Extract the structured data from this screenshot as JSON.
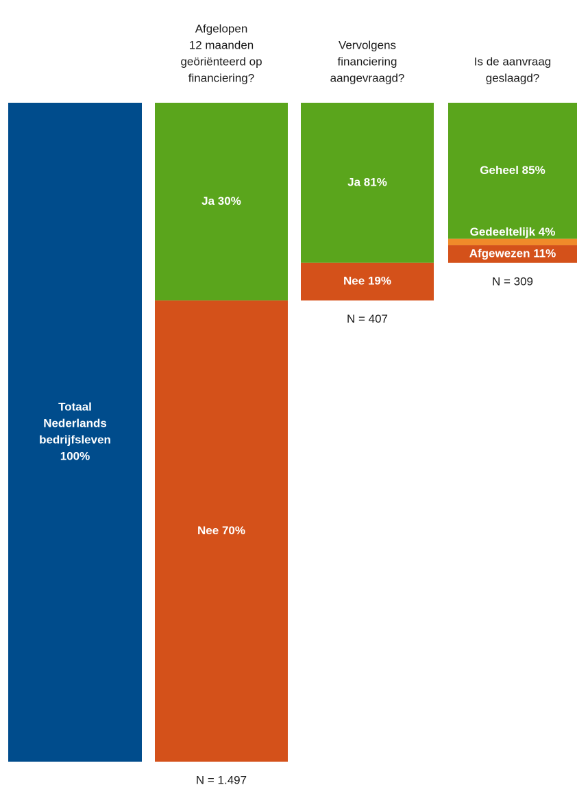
{
  "chart_data": {
    "type": "cascade",
    "columns": [
      {
        "values": [
          100
        ],
        "value_labels": [
          [
            "Totaal",
            "Nederlands",
            "bedrijfsleven",
            "100%"
          ]
        ],
        "colors": [
          "#004c8c"
        ]
      },
      {
        "title": [
          "Afgelopen",
          "12 maanden",
          "geöriënteerd op",
          "financiering?"
        ],
        "values": [
          30,
          70
        ],
        "value_labels": [
          [
            "Ja 30%"
          ],
          [
            "Nee 70%"
          ]
        ],
        "colors": [
          "#5aa51c",
          "#d4511a"
        ],
        "n_label": "N = 1.497"
      },
      {
        "title": [
          "Vervolgens",
          "financiering",
          "aangevraagd?"
        ],
        "values": [
          81,
          19
        ],
        "value_labels": [
          [
            "Ja 81%"
          ],
          [
            "Nee 19%"
          ]
        ],
        "colors": [
          "#5aa51c",
          "#d4511a"
        ],
        "n_label": "N = 407"
      },
      {
        "title": [
          "Is de aanvraag",
          "geslaagd?"
        ],
        "values": [
          85,
          4,
          11
        ],
        "value_labels": [
          [
            "Geheel 85%"
          ],
          [
            "Gedeeltelijk 4%"
          ],
          [
            "Afgewezen 11%"
          ]
        ],
        "colors": [
          "#5aa51c",
          "#f08a2a",
          "#d4511a"
        ],
        "n_label": "N = 309"
      }
    ]
  }
}
